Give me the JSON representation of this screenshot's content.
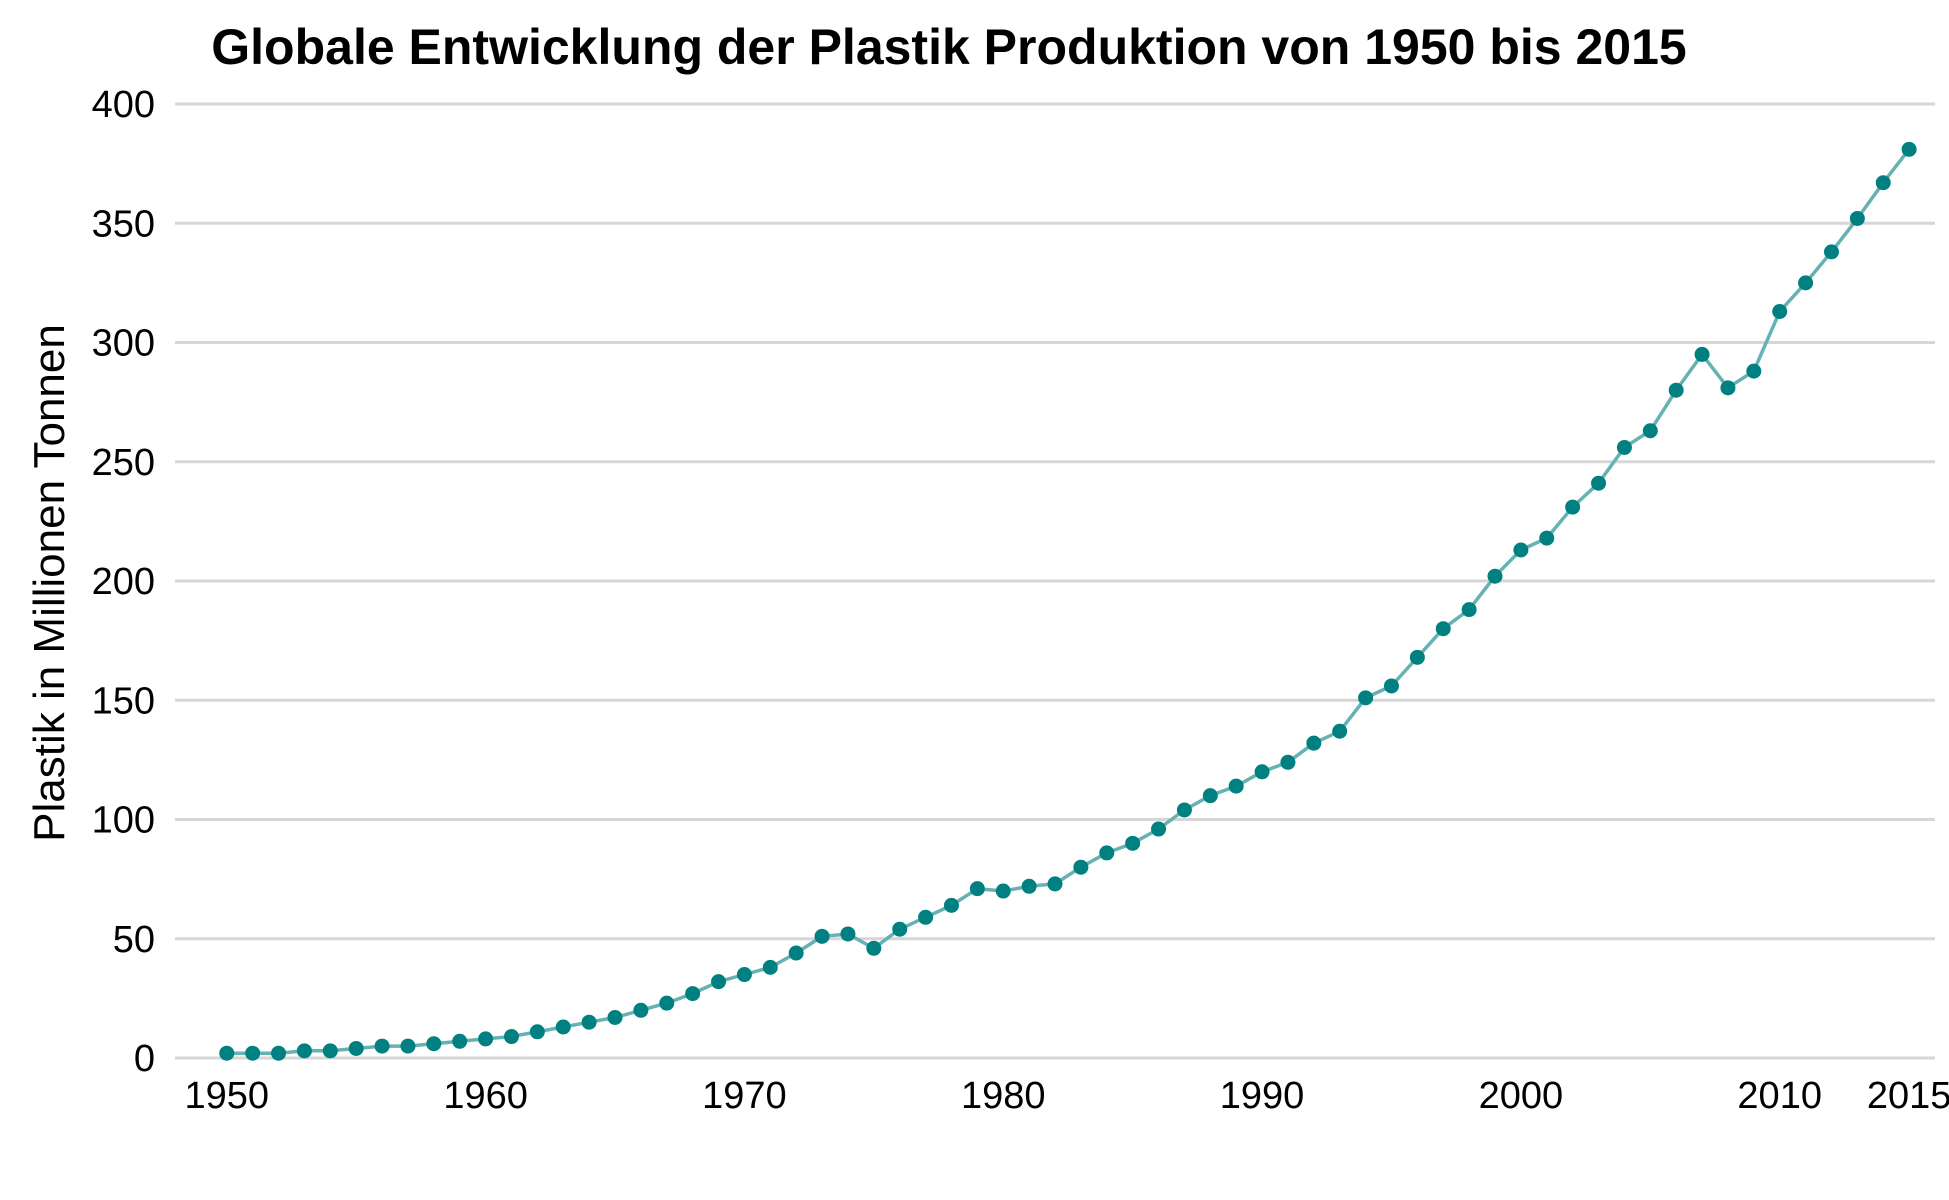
{
  "chart_data": {
    "type": "line",
    "title": "Globale Entwicklung der Plastik Produktion von 1950 bis 2015",
    "xlabel": "",
    "ylabel": "Plastik in Millionen Tonnen",
    "xlim": [
      1948,
      2016
    ],
    "ylim": [
      0,
      400
    ],
    "x_ticks": [
      1950,
      1960,
      1970,
      1980,
      1990,
      2000,
      2010,
      2015
    ],
    "y_ticks": [
      0,
      50,
      100,
      150,
      200,
      250,
      300,
      350,
      400
    ],
    "grid": "horizontal",
    "colors": {
      "line": "#66b2b2",
      "point": "#008080",
      "grid": "#d6d6d6"
    },
    "series": [
      {
        "x": [
          1950,
          1951,
          1952,
          1953,
          1954,
          1955,
          1956,
          1957,
          1958,
          1959,
          1960,
          1961,
          1962,
          1963,
          1964,
          1965,
          1966,
          1967,
          1968,
          1969,
          1970,
          1971,
          1972,
          1973,
          1974,
          1975,
          1976,
          1977,
          1978,
          1979,
          1980,
          1981,
          1982,
          1983,
          1984,
          1985,
          1986,
          1987,
          1988,
          1989,
          1990,
          1991,
          1992,
          1993,
          1994,
          1995,
          1996,
          1997,
          1998,
          1999,
          2000,
          2001,
          2002,
          2003,
          2004,
          2005,
          2006,
          2007,
          2008,
          2009,
          2010,
          2011,
          2012,
          2013,
          2014,
          2015
        ],
        "y": [
          2,
          2,
          2,
          3,
          3,
          4,
          5,
          5,
          6,
          7,
          8,
          9,
          11,
          13,
          15,
          17,
          20,
          23,
          27,
          32,
          35,
          38,
          44,
          51,
          52,
          46,
          54,
          59,
          64,
          71,
          70,
          72,
          73,
          80,
          86,
          90,
          96,
          104,
          110,
          114,
          120,
          124,
          132,
          137,
          151,
          156,
          168,
          180,
          188,
          202,
          213,
          218,
          231,
          241,
          256,
          263,
          280,
          295,
          281,
          288,
          313,
          325,
          338,
          352,
          367,
          381
        ]
      }
    ]
  }
}
